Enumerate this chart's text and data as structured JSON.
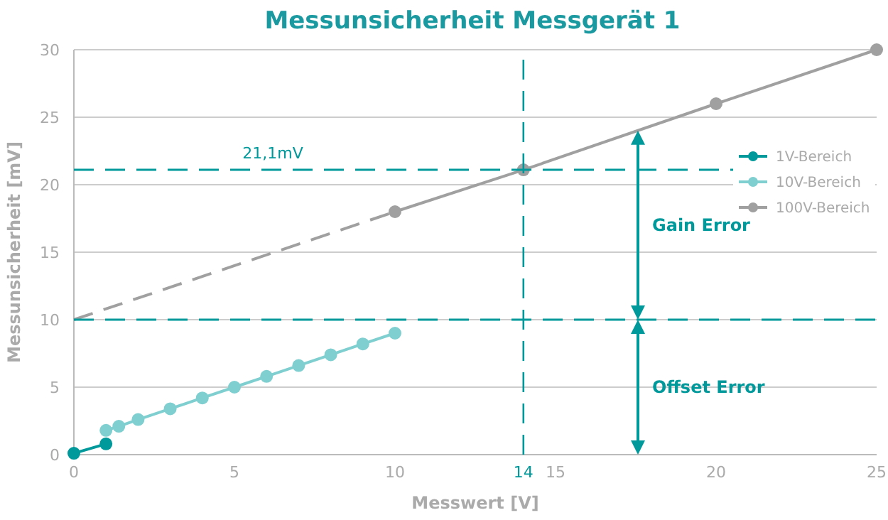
{
  "chart_data": {
    "type": "line",
    "title": "Messunsicherheit Messgerät 1",
    "xlabel": "Messwert [V]",
    "ylabel": "Messunsicherheit [mV]",
    "xlim": [
      0,
      25
    ],
    "xticks": [
      0,
      5,
      10,
      14,
      15,
      20,
      25
    ],
    "ylim": [
      0,
      30
    ],
    "yticks": [
      0,
      5,
      10,
      15,
      20,
      25,
      30
    ],
    "grid": "y",
    "legend": "right",
    "line_style": "solid",
    "series": [
      {
        "name": "1V-Bereich",
        "color": "#00999b",
        "x": [
          0,
          1
        ],
        "values": [
          0.1,
          0.8
        ],
        "marker": "circle"
      },
      {
        "name": "10V-Bereich",
        "color": "#7fcfd0",
        "x": [
          1,
          1.4,
          2,
          3,
          4,
          5,
          6,
          7,
          8,
          9,
          10
        ],
        "values": [
          1.8,
          2.1,
          2.6,
          3.4,
          4.2,
          5.0,
          5.8,
          6.6,
          7.4,
          8.2,
          9.0
        ],
        "marker": "circle"
      },
      {
        "color": "#a0a0a0",
        "x": [
          0,
          10
        ],
        "values": [
          10,
          18
        ],
        "line_style": "dashed"
      },
      {
        "name": "100V-Bereich",
        "color": "#a0a0a0",
        "x": [
          10,
          14,
          20,
          25
        ],
        "values": [
          18,
          21.1,
          26,
          30
        ],
        "marker": "circle"
      }
    ],
    "ref_lines": [
      {
        "axis": "y",
        "value": 21.1,
        "label": "21,1mV",
        "color": "#00999b",
        "line_style": "dashed"
      },
      {
        "axis": "y",
        "value": 10,
        "color": "#00999b",
        "line_style": "dashed"
      },
      {
        "axis": "x",
        "value": 14,
        "color": "#00999b",
        "line_style": "dashed"
      }
    ],
    "annotations": [
      "Gain Error",
      "Offset Error"
    ]
  }
}
